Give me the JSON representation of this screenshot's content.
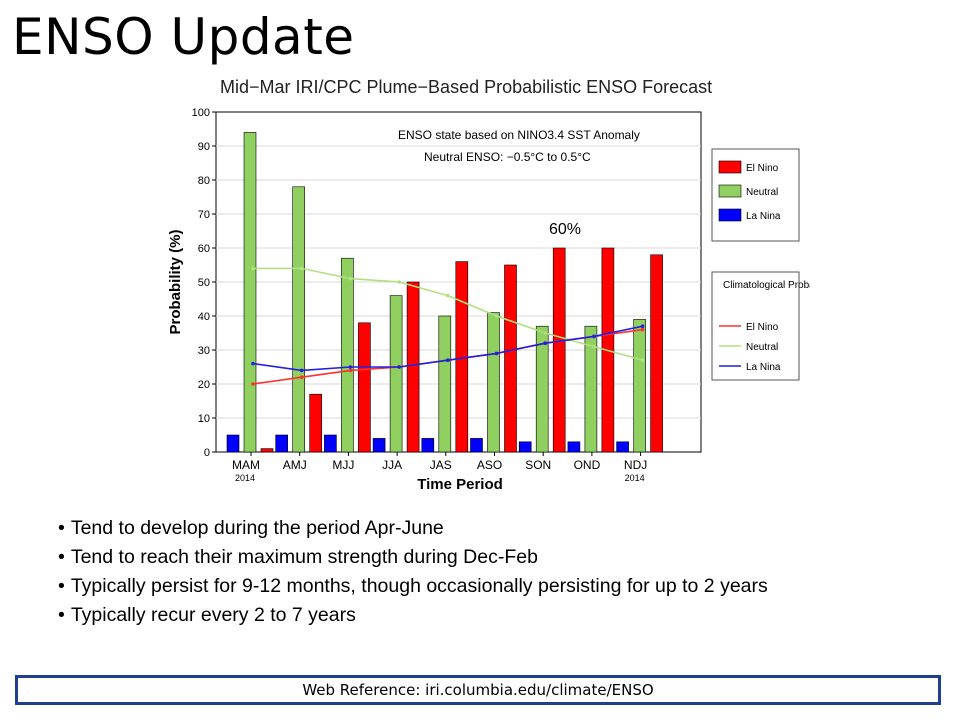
{
  "slide": {
    "title": "ENSO Update",
    "bullets": [
      "Tend to develop during the period Apr-June",
      "Tend to reach their maximum strength during Dec-Feb",
      "Typically persist for 9-12 months, though occasionally persisting for up to 2 years",
      "Typically recur every 2 to 7 years"
    ],
    "reference": "Web Reference: iri.columbia.edu/climate/ENSO"
  },
  "chart_data": {
    "type": "bar",
    "title": "Mid−Mar IRI/CPC Plume−Based Probabilistic ENSO Forecast",
    "xlabel": "Time Period",
    "ylabel": "Probability (%)",
    "ylim": [
      0,
      100
    ],
    "yticks": [
      0,
      10,
      20,
      30,
      40,
      50,
      60,
      70,
      80,
      90,
      100
    ],
    "categories": [
      "MAM",
      "AMJ",
      "MJJ",
      "JJA",
      "JAS",
      "ASO",
      "SON",
      "OND",
      "NDJ"
    ],
    "category_sublabels": [
      "2014",
      "",
      "",
      "",
      "",
      "",
      "",
      "",
      "2014"
    ],
    "series": [
      {
        "name": "La Nina",
        "color": "#0000ff",
        "values": [
          5,
          5,
          5,
          4,
          4,
          4,
          3,
          3,
          3
        ]
      },
      {
        "name": "Neutral",
        "color": "#90d060",
        "values": [
          94,
          78,
          57,
          46,
          40,
          41,
          37,
          37,
          39
        ]
      },
      {
        "name": "El Nino",
        "color": "#ff0000",
        "values": [
          1,
          17,
          38,
          50,
          56,
          55,
          60,
          60,
          58
        ]
      }
    ],
    "climatology": {
      "legend_title": "Climatological Probability:",
      "lines": [
        {
          "name": "El Nino",
          "color": "#ff3030",
          "values": [
            20,
            22,
            24,
            25,
            27,
            29,
            32,
            34,
            36
          ]
        },
        {
          "name": "Neutral",
          "color": "#b0e080",
          "values": [
            54,
            54,
            51,
            50,
            46,
            40,
            35,
            31,
            27
          ]
        },
        {
          "name": "La Nina",
          "color": "#2020e0",
          "values": [
            26,
            24,
            25,
            25,
            27,
            29,
            32,
            34,
            37
          ]
        }
      ]
    },
    "annotations": [
      "ENSO state based on NINO3.4 SST Anomaly",
      "Neutral ENSO: −0.5°C to 0.5°C"
    ],
    "callout": "60%",
    "grid": true,
    "legend_position": "right"
  }
}
